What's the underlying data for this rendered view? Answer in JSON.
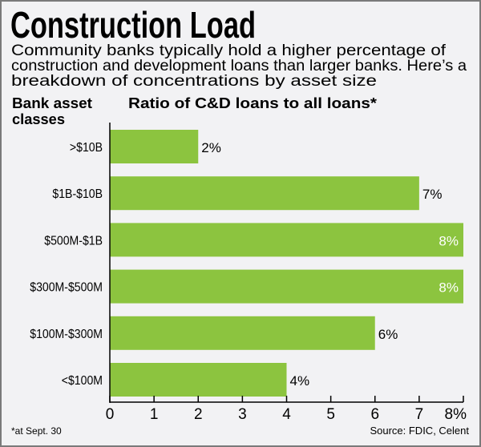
{
  "title": "Construction Load",
  "subtitle_lines": [
    "Community banks typically hold a higher percentage of",
    "construction and development loans than larger banks. Here’s a",
    "breakdown of concentrations by asset size"
  ],
  "footnote": "*at Sept. 30",
  "source": "Source: FDIC, Celent",
  "colors": {
    "bar": "#8cc43f",
    "background": "#f2f2f4",
    "border": "#7a7a7a"
  },
  "chart_data": {
    "type": "bar",
    "orientation": "horizontal",
    "ylabel_lines": [
      "Bank asset",
      "classes"
    ],
    "xlabel": "Ratio of C&D loans to all loans*",
    "categories": [
      ">$10B",
      "$1B-$10B",
      "$500M-$1B",
      "$300M-$500M",
      "$100M-$300M",
      "<$100M"
    ],
    "values": [
      2,
      7,
      8,
      8,
      6,
      4
    ],
    "value_labels": [
      "2%",
      "7%",
      "8%",
      "8%",
      "6%",
      "4%"
    ],
    "xlim": [
      0,
      8
    ],
    "x_ticks": [
      "0",
      "1",
      "2",
      "3",
      "4",
      "5",
      "6",
      "7",
      "8%"
    ],
    "grid": false
  }
}
